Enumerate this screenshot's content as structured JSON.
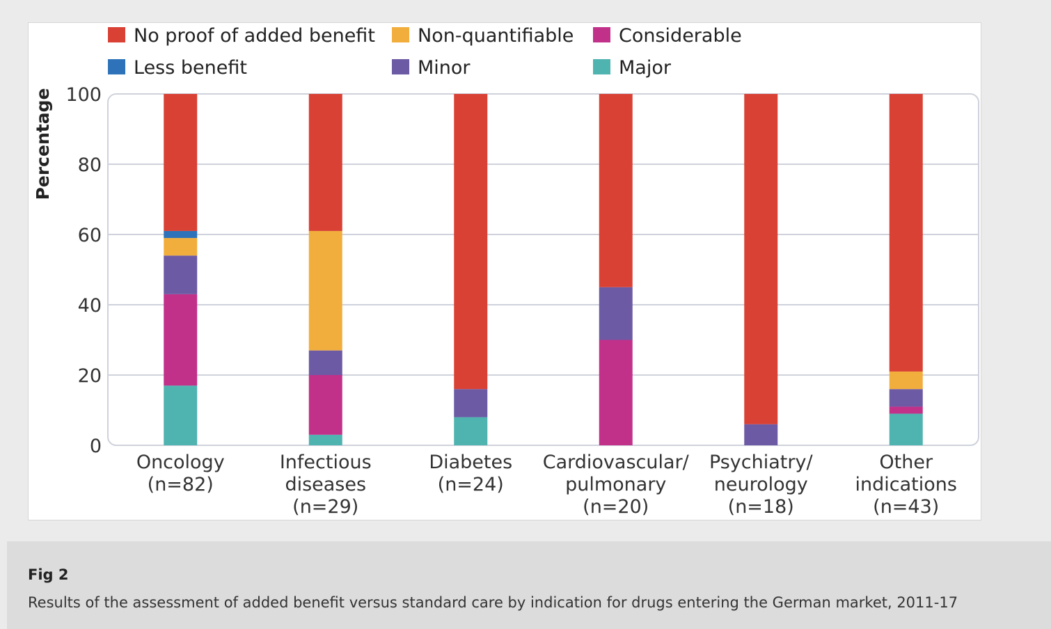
{
  "figure": {
    "label": "Fig 2",
    "caption": "Results of the assessment of added benefit versus standard care by indication for drugs entering the German market, 2011-17"
  },
  "chart_data": {
    "type": "bar",
    "stacked": true,
    "ylabel": "Percentage",
    "xlabel": "",
    "ylim": [
      0,
      100
    ],
    "yticks": [
      0,
      20,
      40,
      60,
      80,
      100
    ],
    "grid": true,
    "legend_position": "top",
    "categories": [
      [
        "Oncology",
        "(n=82)"
      ],
      [
        "Infectious",
        "diseases",
        "(n=29)"
      ],
      [
        "Diabetes",
        "(n=24)"
      ],
      [
        "Cardiovascular/",
        "pulmonary",
        "(n=20)"
      ],
      [
        "Psychiatry/",
        "neurology",
        "(n=18)"
      ],
      [
        "Other",
        "indications",
        "(n=43)"
      ]
    ],
    "series": [
      {
        "name": "Major",
        "color": "#4fb3b0",
        "values": [
          17,
          3,
          8,
          0,
          0,
          9
        ]
      },
      {
        "name": "Considerable",
        "color": "#c1318a",
        "values": [
          26,
          17,
          0,
          30,
          0,
          2
        ]
      },
      {
        "name": "Minor",
        "color": "#6c5aa4",
        "values": [
          11,
          7,
          8,
          15,
          6,
          5
        ]
      },
      {
        "name": "Non-quantifiable",
        "color": "#f2ae3d",
        "values": [
          5,
          34,
          0,
          0,
          0,
          5
        ]
      },
      {
        "name": "Less benefit",
        "color": "#2e73ba",
        "values": [
          2,
          0,
          0,
          0,
          0,
          0
        ]
      },
      {
        "name": "No proof of added benefit",
        "color": "#d94135",
        "values": [
          39,
          39,
          84,
          55,
          94,
          79
        ]
      }
    ],
    "legend_order": [
      "No proof of added benefit",
      "Non-quantifiable",
      "Considerable",
      "Less benefit",
      "Minor",
      "Major"
    ]
  }
}
